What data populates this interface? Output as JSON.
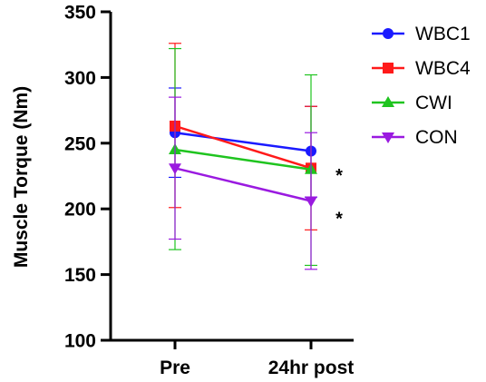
{
  "chart_data": {
    "type": "line",
    "categories": [
      "Pre",
      "24hr post"
    ],
    "ylabel": "Muscle Torque (Nm)",
    "ylim": [
      100,
      350
    ],
    "yticks": [
      100,
      150,
      200,
      250,
      300,
      350
    ],
    "grid": false,
    "legend_position": "top-right",
    "series": [
      {
        "name": "WBC1",
        "color": "#1a1aff",
        "marker": "circle",
        "values": [
          258,
          244
        ],
        "err_low": [
          224,
          209
        ],
        "err_high": [
          292,
          278
        ]
      },
      {
        "name": "WBC4",
        "color": "#ff1a1a",
        "marker": "square",
        "values": [
          263,
          231
        ],
        "err_low": [
          201,
          184
        ],
        "err_high": [
          326,
          278
        ]
      },
      {
        "name": "CWI",
        "color": "#1fc41f",
        "marker": "triangle-up",
        "values": [
          245,
          230
        ],
        "err_low": [
          169,
          157
        ],
        "err_high": [
          322,
          302
        ]
      },
      {
        "name": "CON",
        "color": "#9a1ae0",
        "marker": "triangle-down",
        "values": [
          231,
          206
        ],
        "err_low": [
          177,
          154
        ],
        "err_high": [
          285,
          258
        ]
      }
    ],
    "annotations": [
      {
        "text": "*",
        "category": "24hr post",
        "y": 230
      },
      {
        "text": "*",
        "category": "24hr post",
        "y": 197
      }
    ]
  }
}
